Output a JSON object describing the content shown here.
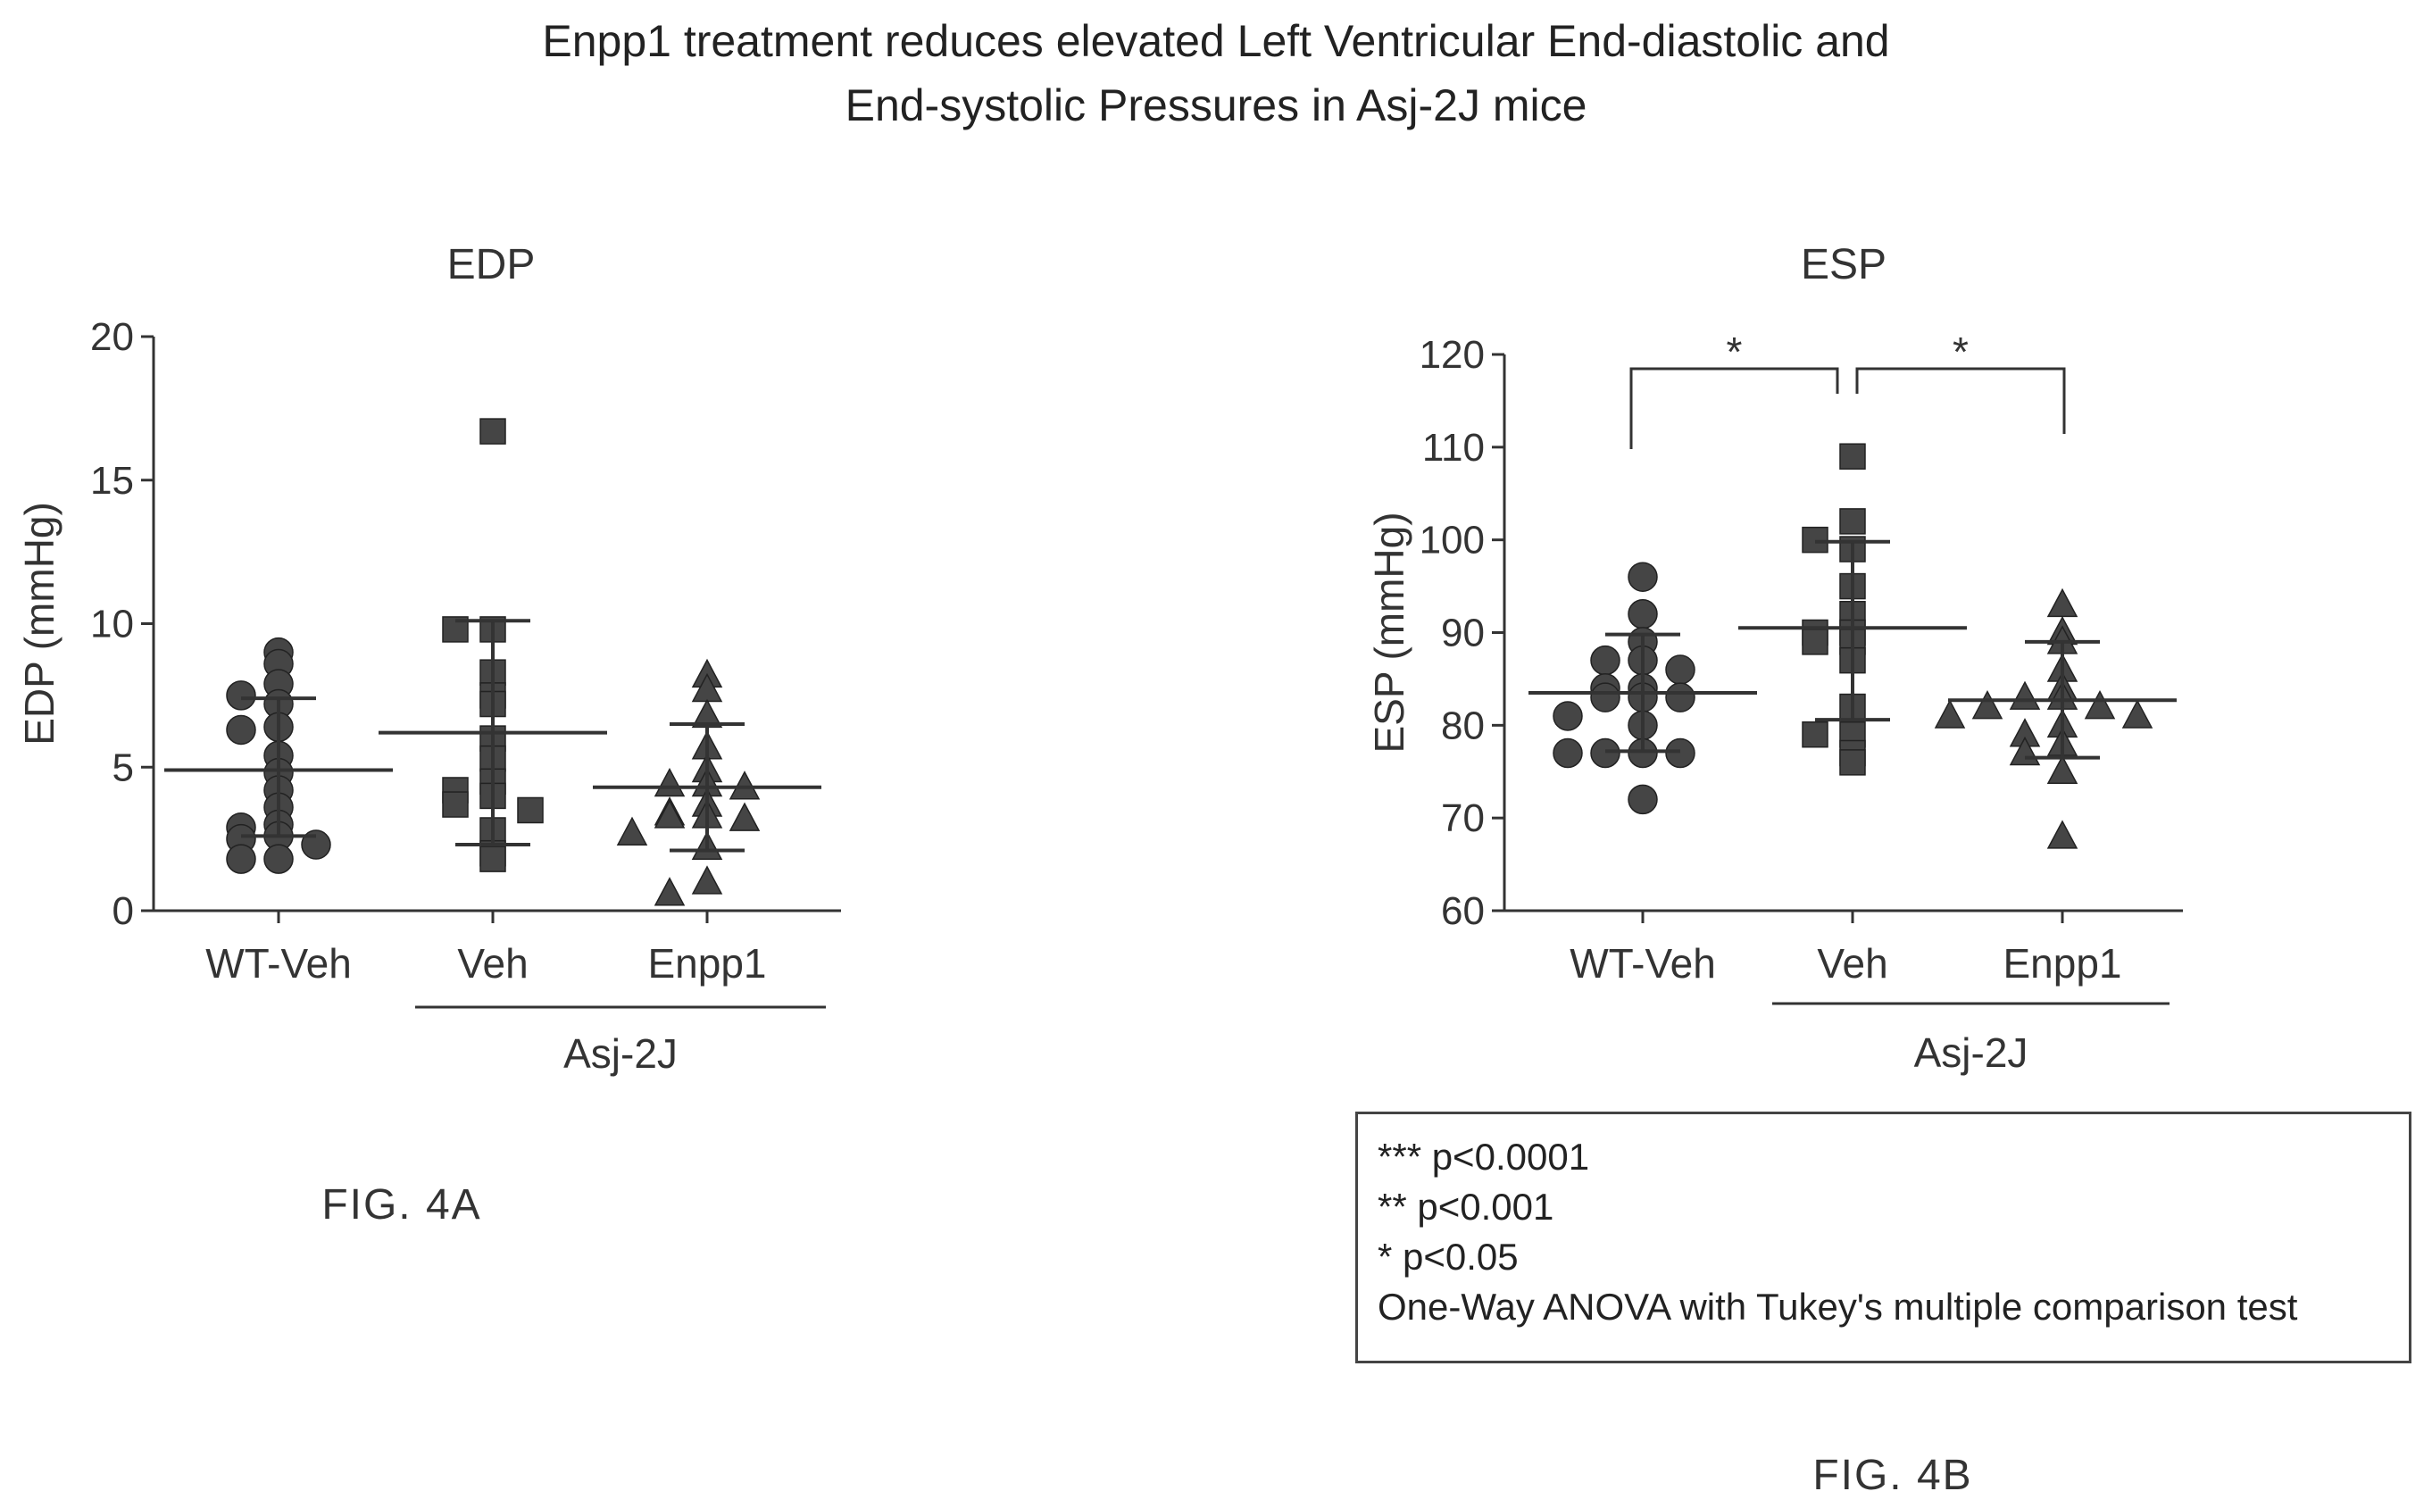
{
  "title": {
    "line1": "Enpp1 treatment reduces elevated Left Ventricular End-diastolic and",
    "line2": "End-systolic Pressures in Asj-2J mice"
  },
  "legend": {
    "line1": "*** p<0.0001",
    "line2": "**  p<0.001",
    "line3": "*   p<0.05",
    "line4": "One-Way ANOVA with Tukey's multiple comparison test"
  },
  "chart_data": [
    {
      "type": "scatter",
      "title": "EDP",
      "figure_label": "FIG. 4A",
      "ylabel": "EDP (mmHg)",
      "ylim": [
        0,
        20
      ],
      "yticks": [
        0,
        5,
        10,
        15,
        20
      ],
      "categories": [
        "WT-Veh",
        "Veh",
        "Enpp1"
      ],
      "group_label": "Asj-2J",
      "group_covers": [
        "Veh",
        "Enpp1"
      ],
      "series": [
        {
          "category": "WT-Veh",
          "marker": "circle",
          "values": [
            9.0,
            8.6,
            7.9,
            7.5,
            7.2,
            6.4,
            6.3,
            5.4,
            4.8,
            4.2,
            3.6,
            3.0,
            2.9,
            2.6,
            2.5,
            2.3,
            1.8,
            1.8
          ],
          "mean": 4.9,
          "sd_low": 2.6,
          "sd_high": 7.4
        },
        {
          "category": "Veh",
          "marker": "square",
          "values": [
            16.7,
            9.8,
            9.8,
            8.3,
            7.5,
            7.2,
            6.0,
            5.3,
            4.5,
            4.2,
            4.0,
            3.7,
            3.5,
            2.8,
            2.0,
            1.8
          ],
          "mean": 6.2,
          "sd_low": 2.3,
          "sd_high": 10.1
        },
        {
          "category": "Enpp1",
          "marker": "triangle",
          "values": [
            8.2,
            7.7,
            6.8,
            5.7,
            4.9,
            4.4,
            4.4,
            4.3,
            3.7,
            3.4,
            3.3,
            3.3,
            3.2,
            2.7,
            2.2,
            1.0,
            0.6
          ],
          "mean": 4.3,
          "sd_low": 2.1,
          "sd_high": 6.5
        }
      ]
    },
    {
      "type": "scatter",
      "title": "ESP",
      "figure_label": "FIG. 4B",
      "ylabel": "ESP (mmHg)",
      "ylim": [
        60,
        120
      ],
      "yticks": [
        60,
        70,
        80,
        90,
        100,
        110,
        120
      ],
      "categories": [
        "WT-Veh",
        "Veh",
        "Enpp1"
      ],
      "group_label": "Asj-2J",
      "group_covers": [
        "Veh",
        "Enpp1"
      ],
      "significance": [
        {
          "from": "WT-Veh",
          "to": "Veh",
          "label": "*"
        },
        {
          "from": "Veh",
          "to": "Enpp1",
          "label": "*"
        }
      ],
      "series": [
        {
          "category": "WT-Veh",
          "marker": "circle",
          "values": [
            96,
            92,
            89,
            87,
            87,
            86,
            84,
            84,
            83,
            83,
            83,
            81,
            80,
            77,
            77,
            77,
            77,
            72
          ],
          "mean": 83.5,
          "sd_low": 77.2,
          "sd_high": 89.8
        },
        {
          "category": "Veh",
          "marker": "square",
          "values": [
            109,
            102,
            100,
            99,
            95,
            92,
            90,
            90,
            89,
            89,
            87,
            82,
            79,
            79,
            77,
            76
          ],
          "mean": 90.5,
          "sd_low": 80.6,
          "sd_high": 99.8
        },
        {
          "category": "Enpp1",
          "marker": "triangle",
          "values": [
            93,
            90,
            89,
            86,
            84,
            83,
            83,
            82,
            82,
            81,
            81,
            80,
            79,
            78,
            77,
            75,
            68
          ],
          "mean": 82.7,
          "sd_low": 76.5,
          "sd_high": 89.0
        }
      ]
    }
  ]
}
